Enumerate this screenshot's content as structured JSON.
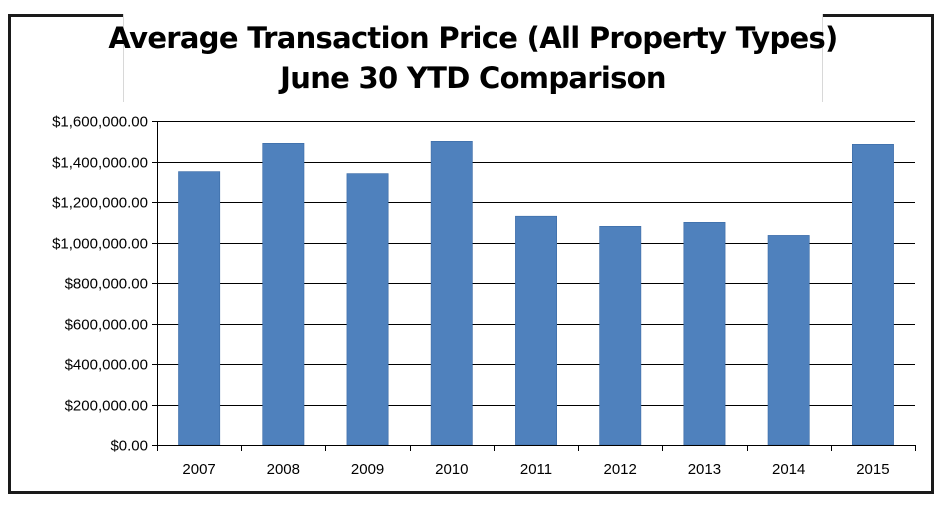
{
  "chart_data": {
    "type": "bar",
    "title": "Average Transaction Price (All Property Types)",
    "subtitle": "June 30 YTD Comparison",
    "xlabel": "",
    "ylabel": "",
    "categories": [
      "2007",
      "2008",
      "2009",
      "2010",
      "2011",
      "2012",
      "2013",
      "2014",
      "2015"
    ],
    "values": [
      1350000,
      1490000,
      1340000,
      1500000,
      1130000,
      1080000,
      1100000,
      1035000,
      1485000
    ],
    "ylim": [
      0,
      1600000
    ],
    "yticks": [
      0,
      200000,
      400000,
      600000,
      800000,
      1000000,
      1200000,
      1400000,
      1600000
    ],
    "ytick_labels": [
      "$0.00",
      "$200,000.00",
      "$400,000.00",
      "$600,000.00",
      "$800,000.00",
      "$1,000,000.00",
      "$1,200,000.00",
      "$1,400,000.00",
      "$1,600,000.00"
    ],
    "grid": true,
    "legend": "none",
    "bar_color": "#4f81bd",
    "gridline_color": "#000000"
  }
}
